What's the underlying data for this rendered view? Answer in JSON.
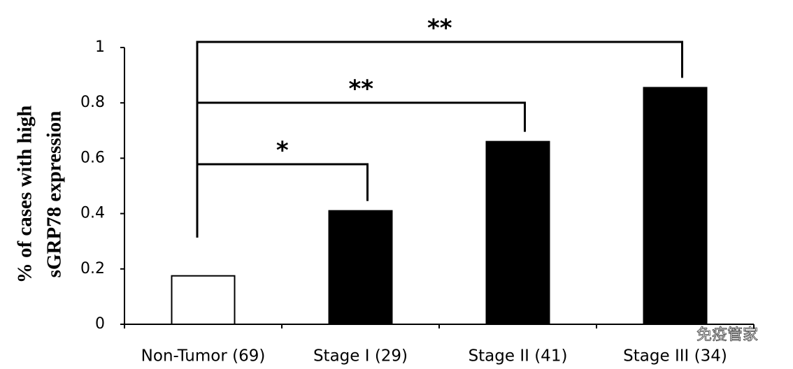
{
  "chart_data": {
    "type": "bar",
    "y_label": [
      "% of cases with high",
      "sGRP78 expression"
    ],
    "categories": [
      "Non-Tumor (69)",
      "Stage I (29)",
      "Stage II (41)",
      "Stage III (34)"
    ],
    "values": [
      0.175,
      0.41,
      0.66,
      0.855
    ],
    "colors": [
      "#ffffff",
      "#000000",
      "#000000",
      "#000000"
    ],
    "ylim": [
      0,
      1
    ],
    "yticks": [
      0,
      0.2,
      0.4,
      0.6,
      0.8,
      1
    ],
    "annotations": [
      {
        "label": "*",
        "from": 0,
        "to": 1
      },
      {
        "label": "**",
        "from": 0,
        "to": 2
      },
      {
        "label": "**",
        "from": 0,
        "to": 3
      }
    ],
    "watermark": "免疫管家"
  }
}
